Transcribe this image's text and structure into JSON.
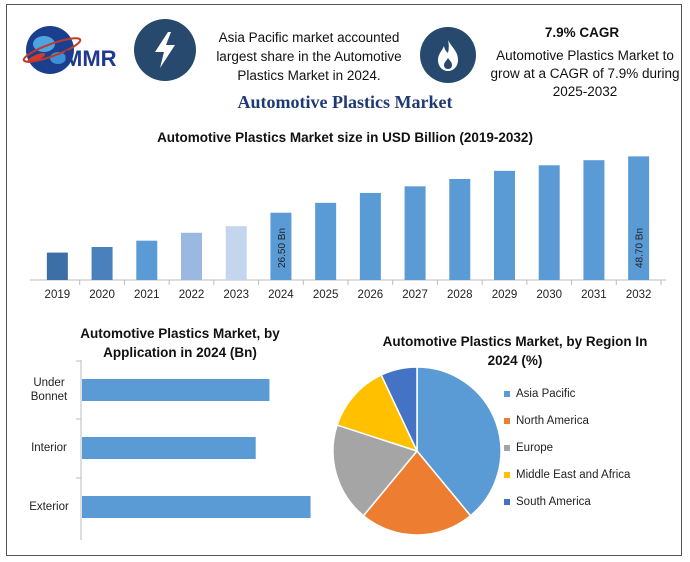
{
  "header": {
    "logo_text": "MMR",
    "info_left": "Asia Pacific market accounted largest share in the Automotive Plastics Market in 2024.",
    "cagr_title": "7.9% CAGR",
    "cagr_text": "Automotive Plastics Market to grow at a CAGR of 7.9% during 2025-2032",
    "badge1_icon": "lightning-bolt-icon",
    "badge2_icon": "flame-icon",
    "badge_color": "#27496d"
  },
  "main_title": "Automotive Plastics Market",
  "chart_data": [
    {
      "type": "bar",
      "title": "Automotive Plastics Market size in USD Billion (2019-2032)",
      "categories": [
        "2019",
        "2020",
        "2021",
        "2022",
        "2023",
        "2024",
        "2025",
        "2026",
        "2027",
        "2028",
        "2029",
        "2030",
        "2031",
        "2032"
      ],
      "values": [
        10.8,
        13.0,
        15.5,
        18.6,
        21.2,
        26.5,
        30.4,
        34.3,
        36.9,
        39.8,
        43.0,
        45.2,
        47.2,
        48.7
      ],
      "colors": [
        "#3b6fa5",
        "#4a80bb",
        "#5b9bd5",
        "#9bb9e0",
        "#c3d6ee",
        "#5b9bd5",
        "#5b9bd5",
        "#5b9bd5",
        "#5b9bd5",
        "#5b9bd5",
        "#5b9bd5",
        "#5b9bd5",
        "#5b9bd5",
        "#5b9bd5"
      ],
      "data_labels": {
        "2024": "26.50 Bn",
        "2032": "48.70 Bn"
      },
      "ylim": [
        0,
        52
      ]
    },
    {
      "type": "bar",
      "orientation": "horizontal",
      "title": "Automotive Plastics Market, by Application in 2024 (Bn)",
      "categories": [
        "Under Bonnet",
        "Interior",
        "Exterior"
      ],
      "category_lines": [
        [
          "Under",
          "Bonnet"
        ],
        [
          "Interior"
        ],
        [
          "Exterior"
        ]
      ],
      "values": [
        8.2,
        7.6,
        10.0
      ],
      "xlim": [
        0,
        10.5
      ],
      "color": "#5b9bd5"
    },
    {
      "type": "pie",
      "title": "Automotive Plastics Market, by Region In 2024 (%)",
      "labels": [
        "Asia Pacific",
        "North America",
        "Europe",
        "Middle East and Africa",
        "South America"
      ],
      "values": [
        39,
        22,
        19,
        13,
        7
      ],
      "colors": [
        "#5b9bd5",
        "#ed7d31",
        "#a5a5a5",
        "#ffc000",
        "#4472c4"
      ]
    }
  ]
}
